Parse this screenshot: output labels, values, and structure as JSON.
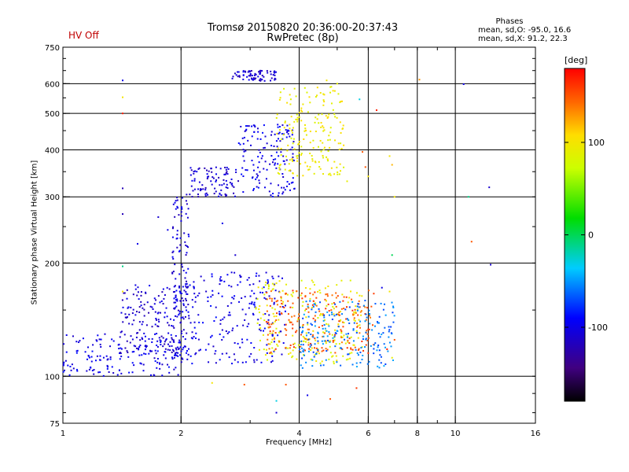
{
  "header": {
    "status_label": "HV Off",
    "title_line1": "Tromsø 20150820 20:36:00-20:37:43",
    "title_line2": "RwPretec (8p)",
    "stats_title": "Phases",
    "stats_line1": "mean, sd,O: -95.0, 16.6",
    "stats_line2": "mean, sd,X:  91.2, 22.3"
  },
  "colorbar": {
    "unit_label": "[deg]",
    "ticks": [
      {
        "value": 100,
        "label": "100"
      },
      {
        "value": 0,
        "label": "0"
      },
      {
        "value": -100,
        "label": "-100"
      }
    ],
    "range": [
      -180,
      180
    ]
  },
  "chart_data": {
    "type": "scatter",
    "title": "",
    "xlabel": "Frequency [MHz]",
    "ylabel": "Stationary phase Virtual Height [km]",
    "xscale": "log",
    "yscale": "log",
    "xlim": [
      1,
      16
    ],
    "ylim": [
      75,
      750
    ],
    "x_ticks": [
      {
        "value": 1,
        "label": "1"
      },
      {
        "value": 2,
        "label": "2"
      },
      {
        "value": 4,
        "label": "4"
      },
      {
        "value": 6,
        "label": "6"
      },
      {
        "value": 8,
        "label": "8"
      },
      {
        "value": 10,
        "label": "10"
      },
      {
        "value": 16,
        "label": "16"
      }
    ],
    "y_ticks": [
      {
        "value": 75,
        "label": "75"
      },
      {
        "value": 100,
        "label": "100"
      },
      {
        "value": 200,
        "label": "200"
      },
      {
        "value": 300,
        "label": "300"
      },
      {
        "value": 400,
        "label": "400"
      },
      {
        "value": 500,
        "label": "500"
      },
      {
        "value": 600,
        "label": "600"
      },
      {
        "value": 750,
        "label": "750"
      }
    ],
    "x_gridlines": [
      2,
      4,
      6,
      8,
      10
    ],
    "y_gridlines": [
      100,
      200,
      300,
      400,
      500,
      600
    ],
    "grid": true,
    "color_variable": "phase [deg]",
    "clusters": [
      {
        "x_range": [
          1.0,
          2.0
        ],
        "y_range": [
          100,
          130
        ],
        "phase": -100
      },
      {
        "x_range": [
          1.4,
          2.0
        ],
        "y_range": [
          115,
          175
        ],
        "phase": -110
      },
      {
        "x_range": [
          1.9,
          2.1
        ],
        "y_range": [
          110,
          310
        ],
        "phase": -105
      },
      {
        "x_range": [
          2.0,
          3.7
        ],
        "y_range": [
          108,
          190
        ],
        "phase": -100
      },
      {
        "x_range": [
          2.1,
          2.8
        ],
        "y_range": [
          300,
          360
        ],
        "phase": -110
      },
      {
        "x_range": [
          2.8,
          3.9
        ],
        "y_range": [
          300,
          470
        ],
        "phase": -100
      },
      {
        "x_range": [
          2.7,
          3.5
        ],
        "y_range": [
          610,
          650
        ],
        "phase": -110
      },
      {
        "x_range": [
          3.1,
          5.8
        ],
        "y_range": [
          108,
          180
        ],
        "phase": 90
      },
      {
        "x_range": [
          3.5,
          5.2
        ],
        "y_range": [
          340,
          590
        ],
        "phase": 95
      },
      {
        "x_range": [
          3.3,
          6.2
        ],
        "y_range": [
          115,
          170
        ],
        "phase": 150
      },
      {
        "x_range": [
          4.0,
          7.0
        ],
        "y_range": [
          105,
          160
        ],
        "phase": -60
      }
    ],
    "sample_points": [
      {
        "x": 1.42,
        "y": 612,
        "phase": -100
      },
      {
        "x": 1.42,
        "y": 552,
        "phase": 100
      },
      {
        "x": 1.42,
        "y": 500,
        "phase": 170
      },
      {
        "x": 1.42,
        "y": 316,
        "phase": -120
      },
      {
        "x": 1.42,
        "y": 270,
        "phase": -120
      },
      {
        "x": 1.42,
        "y": 196,
        "phase": -10
      },
      {
        "x": 1.42,
        "y": 168,
        "phase": 100
      },
      {
        "x": 4.7,
        "y": 612,
        "phase": 100
      },
      {
        "x": 5.0,
        "y": 600,
        "phase": 90
      },
      {
        "x": 5.7,
        "y": 545,
        "phase": -30
      },
      {
        "x": 6.3,
        "y": 510,
        "phase": 170
      },
      {
        "x": 8.1,
        "y": 615,
        "phase": 130
      },
      {
        "x": 10.5,
        "y": 598,
        "phase": -100
      },
      {
        "x": 10.8,
        "y": 300,
        "phase": -10
      },
      {
        "x": 12.2,
        "y": 318,
        "phase": -110
      },
      {
        "x": 11.0,
        "y": 228,
        "phase": 150
      },
      {
        "x": 12.3,
        "y": 198,
        "phase": -110
      },
      {
        "x": 5.8,
        "y": 395,
        "phase": 150
      },
      {
        "x": 5.9,
        "y": 360,
        "phase": 150
      },
      {
        "x": 5.3,
        "y": 330,
        "phase": 90
      },
      {
        "x": 6.0,
        "y": 340,
        "phase": 100
      },
      {
        "x": 6.8,
        "y": 385,
        "phase": 100
      },
      {
        "x": 6.9,
        "y": 365,
        "phase": 120
      },
      {
        "x": 7.0,
        "y": 300,
        "phase": 100
      },
      {
        "x": 6.9,
        "y": 210,
        "phase": 0
      },
      {
        "x": 3.5,
        "y": 80,
        "phase": -110
      },
      {
        "x": 3.7,
        "y": 95,
        "phase": 150
      },
      {
        "x": 4.2,
        "y": 89,
        "phase": -100
      },
      {
        "x": 4.8,
        "y": 87,
        "phase": 150
      },
      {
        "x": 5.6,
        "y": 93,
        "phase": 160
      },
      {
        "x": 2.4,
        "y": 96,
        "phase": 100
      },
      {
        "x": 2.9,
        "y": 95,
        "phase": 150
      },
      {
        "x": 3.5,
        "y": 86,
        "phase": -30
      },
      {
        "x": 1.55,
        "y": 225,
        "phase": -100
      },
      {
        "x": 1.75,
        "y": 265,
        "phase": -110
      },
      {
        "x": 1.85,
        "y": 245,
        "phase": -100
      },
      {
        "x": 2.55,
        "y": 255,
        "phase": -100
      },
      {
        "x": 2.75,
        "y": 210,
        "phase": -110
      },
      {
        "x": 6.5,
        "y": 172,
        "phase": -100
      },
      {
        "x": 6.8,
        "y": 168,
        "phase": 100
      },
      {
        "x": 6.7,
        "y": 118,
        "phase": 170
      },
      {
        "x": 6.9,
        "y": 112,
        "phase": 90
      },
      {
        "x": 7.0,
        "y": 125,
        "phase": 150
      }
    ]
  }
}
